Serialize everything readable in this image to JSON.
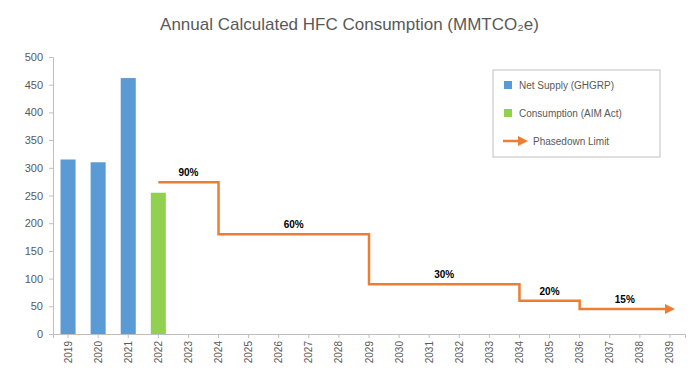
{
  "chart_data": {
    "type": "bar",
    "title": "Annual Calculated HFC Consumption (MMTCO₂e)",
    "categories": [
      "2019",
      "2020",
      "2021",
      "2022",
      "2023",
      "2024",
      "2025",
      "2026",
      "2027",
      "2028",
      "2029",
      "2030",
      "2031",
      "2032",
      "2033",
      "2034",
      "2035",
      "2036",
      "2037",
      "2038",
      "2039"
    ],
    "series": [
      {
        "name": "Net Supply (GHGRP)",
        "type": "bar",
        "color": "#5B9BD5",
        "values": [
          315,
          310,
          462,
          null,
          null,
          null,
          null,
          null,
          null,
          null,
          null,
          null,
          null,
          null,
          null,
          null,
          null,
          null,
          null,
          null,
          null
        ]
      },
      {
        "name": "Consumption (AIM Act)",
        "type": "bar",
        "color": "#92D050",
        "values": [
          null,
          null,
          null,
          255,
          null,
          null,
          null,
          null,
          null,
          null,
          null,
          null,
          null,
          null,
          null,
          null,
          null,
          null,
          null,
          null,
          null
        ]
      },
      {
        "name": "Phasedown Limit",
        "type": "line",
        "color": "#ED7D31",
        "line_style": "step",
        "values": [
          null,
          null,
          null,
          274,
          274,
          180,
          180,
          180,
          180,
          180,
          90,
          90,
          90,
          90,
          90,
          60,
          60,
          45,
          45,
          45,
          45
        ]
      }
    ],
    "annotations": [
      {
        "text": "90%",
        "from": "2022",
        "to": "2024"
      },
      {
        "text": "60%",
        "from": "2024",
        "to": "2029"
      },
      {
        "text": "30%",
        "from": "2029",
        "to": "2034"
      },
      {
        "text": "20%",
        "from": "2034",
        "to": "2036"
      },
      {
        "text": "15%",
        "from": "2036",
        "to": "2039"
      }
    ],
    "ylim": [
      0,
      500
    ],
    "yticks": [
      0,
      50,
      100,
      150,
      200,
      250,
      300,
      350,
      400,
      450,
      500
    ],
    "grid": false,
    "legend": "top-right"
  }
}
